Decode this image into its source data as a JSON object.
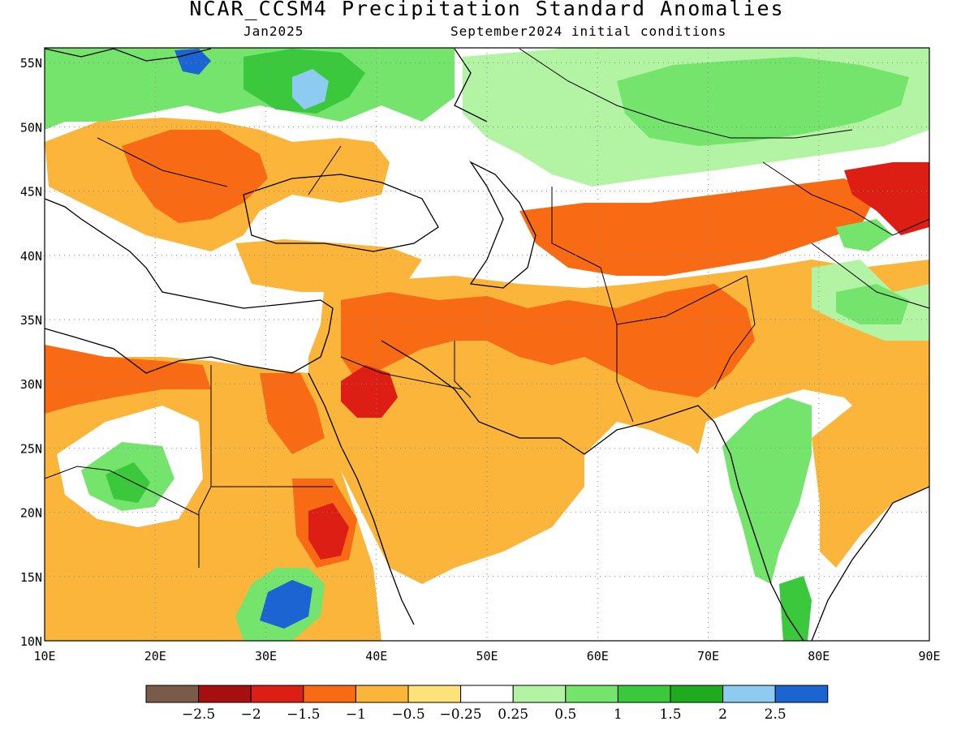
{
  "title": "NCAR_CCSM4 Precipitation Standard Anomalies",
  "valid_month": "Jan2025",
  "initial_conditions": "September2024 initial conditions",
  "axes": {
    "lon_labels": [
      "10E",
      "20E",
      "30E",
      "40E",
      "50E",
      "60E",
      "70E",
      "80E",
      "90E"
    ],
    "lat_labels": [
      "10N",
      "15N",
      "20N",
      "25N",
      "30N",
      "35N",
      "40N",
      "45N",
      "50N",
      "55N"
    ]
  },
  "colorbar": {
    "colors": [
      "#7a5a48",
      "#a50f0f",
      "#dd1e14",
      "#f86a14",
      "#fbb53a",
      "#fde27a",
      "#ffffff",
      "#b2f4a3",
      "#74e46c",
      "#3cc83c",
      "#1faa1f",
      "#8ecbf0",
      "#1c64d2"
    ],
    "labels": [
      "−2.5",
      "−2",
      "−1.5",
      "−1",
      "−0.5",
      "−0.25",
      "0.25",
      "0.5",
      "1",
      "1.5",
      "2",
      "2.5"
    ]
  }
}
